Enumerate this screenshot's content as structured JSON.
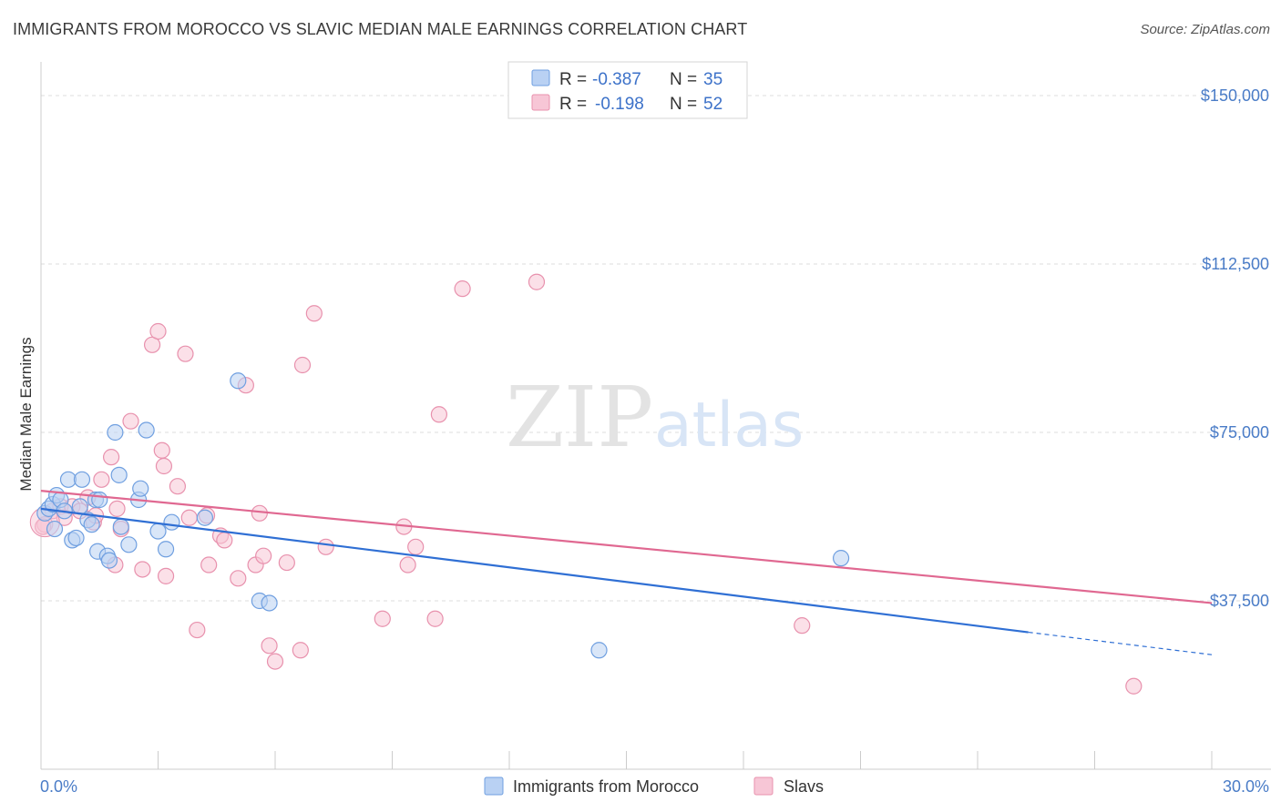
{
  "title": "IMMIGRANTS FROM MOROCCO VS SLAVIC MEDIAN MALE EARNINGS CORRELATION CHART",
  "source": "Source: ZipAtlas.com",
  "watermark": {
    "zip": "ZIP",
    "atlas": "atlas"
  },
  "colors": {
    "blue_fill": "#b9d1f3",
    "blue_stroke": "#6f9fe0",
    "blue_line": "#2f6fd4",
    "pink_fill": "#f7c6d6",
    "pink_stroke": "#e891ad",
    "pink_line": "#e06891",
    "grid": "#dddddd",
    "label": "#4a7cc7"
  },
  "legend": {
    "row1": {
      "r_label": "R = ",
      "r_value": "-0.387",
      "n_label": "N = ",
      "n_value": "35"
    },
    "row2": {
      "r_label": "R = ",
      "r_value": "-0.198",
      "n_label": "N = ",
      "n_value": "52"
    }
  },
  "chart_data": {
    "type": "scatter",
    "title": "IMMIGRANTS FROM MOROCCO VS SLAVIC MEDIAN MALE EARNINGS CORRELATION CHART",
    "xlabel": "",
    "ylabel": "Median Male Earnings",
    "xlim": [
      0,
      30
    ],
    "ylim": [
      0,
      157500
    ],
    "x_tick_labels": [
      "0.0%",
      "30.0%"
    ],
    "y_ticks": [
      37500,
      75000,
      112500,
      150000
    ],
    "y_tick_labels": [
      "$37,500",
      "$75,000",
      "$112,500",
      "$150,000"
    ],
    "series": [
      {
        "name": "Immigrants from Morocco",
        "color": "blue",
        "r": -0.387,
        "n": 35,
        "trend": {
          "x0": 0,
          "y0": 58000,
          "x1": 25.3,
          "y1": 30500,
          "dash_x1": 30,
          "dash_y1": 25500
        },
        "points": [
          [
            0.1,
            57000
          ],
          [
            0.2,
            58000
          ],
          [
            0.3,
            59000
          ],
          [
            0.4,
            61000
          ],
          [
            0.5,
            60000
          ],
          [
            0.6,
            57500
          ],
          [
            0.7,
            64500
          ],
          [
            0.8,
            51000
          ],
          [
            0.9,
            51500
          ],
          [
            1.05,
            64500
          ],
          [
            1.2,
            55500
          ],
          [
            1.3,
            54500
          ],
          [
            1.4,
            60000
          ],
          [
            1.45,
            48500
          ],
          [
            1.7,
            47500
          ],
          [
            1.75,
            46500
          ],
          [
            1.9,
            75000
          ],
          [
            2.0,
            65500
          ],
          [
            2.05,
            54000
          ],
          [
            2.25,
            50000
          ],
          [
            2.5,
            60000
          ],
          [
            2.55,
            62500
          ],
          [
            2.7,
            75500
          ],
          [
            3.0,
            53000
          ],
          [
            3.2,
            49000
          ],
          [
            3.35,
            55000
          ],
          [
            4.2,
            56000
          ],
          [
            5.05,
            86500
          ],
          [
            5.6,
            37500
          ],
          [
            5.85,
            37000
          ],
          [
            14.3,
            26500
          ],
          [
            20.5,
            47000
          ],
          [
            1.0,
            58500
          ],
          [
            0.35,
            53500
          ],
          [
            1.5,
            60000
          ]
        ]
      },
      {
        "name": "Slavs",
        "color": "pink",
        "r": -0.198,
        "n": 52,
        "trend": {
          "x0": 0,
          "y0": 62000,
          "x1": 30,
          "y1": 37000
        },
        "points": [
          [
            0.1,
            54500
          ],
          [
            0.3,
            57500
          ],
          [
            0.5,
            58500
          ],
          [
            0.6,
            56000
          ],
          [
            0.8,
            58500
          ],
          [
            1.0,
            57500
          ],
          [
            1.2,
            60500
          ],
          [
            1.35,
            55000
          ],
          [
            1.4,
            56500
          ],
          [
            1.55,
            64500
          ],
          [
            1.8,
            69500
          ],
          [
            1.9,
            45500
          ],
          [
            2.05,
            53500
          ],
          [
            2.3,
            77500
          ],
          [
            2.6,
            44500
          ],
          [
            2.85,
            94500
          ],
          [
            3.0,
            97500
          ],
          [
            3.2,
            43000
          ],
          [
            3.1,
            71000
          ],
          [
            3.15,
            67500
          ],
          [
            3.5,
            63000
          ],
          [
            3.7,
            92500
          ],
          [
            3.8,
            56000
          ],
          [
            4.0,
            31000
          ],
          [
            4.25,
            56500
          ],
          [
            4.3,
            45500
          ],
          [
            4.6,
            52000
          ],
          [
            4.7,
            51000
          ],
          [
            5.05,
            42500
          ],
          [
            5.25,
            85500
          ],
          [
            5.5,
            45500
          ],
          [
            5.6,
            57000
          ],
          [
            5.7,
            47500
          ],
          [
            5.85,
            27500
          ],
          [
            6.0,
            24000
          ],
          [
            6.3,
            46000
          ],
          [
            6.65,
            26500
          ],
          [
            6.7,
            90000
          ],
          [
            7.0,
            101500
          ],
          [
            7.3,
            49500
          ],
          [
            8.75,
            33500
          ],
          [
            9.3,
            54000
          ],
          [
            9.4,
            45500
          ],
          [
            9.6,
            49500
          ],
          [
            10.1,
            33500
          ],
          [
            10.2,
            79000
          ],
          [
            10.8,
            107000
          ],
          [
            12.7,
            108500
          ],
          [
            19.5,
            32000
          ],
          [
            28.0,
            18500
          ],
          [
            0.05,
            54000
          ],
          [
            1.95,
            58000
          ]
        ]
      }
    ]
  },
  "bottom_legend": {
    "item1": "Immigrants from Morocco",
    "item2": "Slavs"
  }
}
